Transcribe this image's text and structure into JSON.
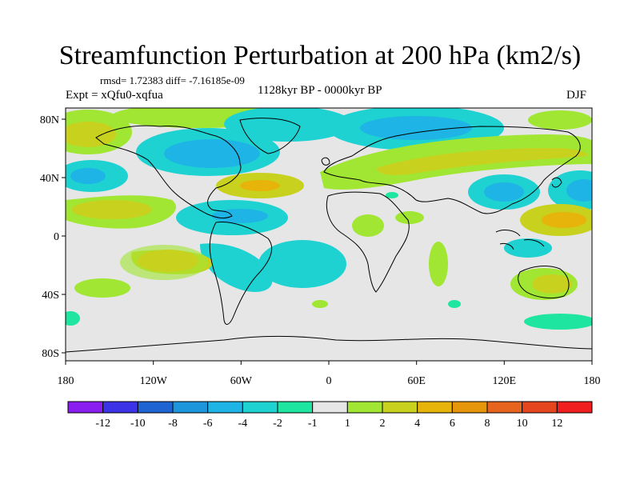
{
  "title": "Streamfunction Perturbation at 200 hPa (km2/s)",
  "stats_line": "rmsd= 1.72383 diff= -7.16185e-09",
  "experiment": "Expt = xQfu0-xqfua",
  "period": "1128kyr BP - 0000kyr BP",
  "season": "DJF",
  "x_ticks": [
    "180",
    "120W",
    "60W",
    "0",
    "60E",
    "120E",
    "180"
  ],
  "y_ticks": [
    "80N",
    "40N",
    "0",
    "40S",
    "80S"
  ],
  "colorbar": {
    "labels": [
      "-12",
      "-10",
      "-8",
      "-6",
      "-4",
      "-2",
      "-1",
      "1",
      "2",
      "4",
      "6",
      "8",
      "10",
      "12"
    ],
    "colors": [
      "#8a1ef0",
      "#3c32e6",
      "#1e64d2",
      "#1e96dc",
      "#1eb4e6",
      "#1ed2d2",
      "#1ee6a0",
      "#e6e6e6",
      "#a0e632",
      "#c8d21e",
      "#e6b40a",
      "#e6960a",
      "#e6641e",
      "#e6461e",
      "#f01e1e"
    ]
  },
  "legend_tiers": {
    "c_green": "#a0e632",
    "c_olive": "#c8d21e",
    "c_gold": "#e6b40a",
    "c_orange": "#e6960a",
    "c_teal": "#1ee6a0",
    "c_cyan": "#1ed2d2",
    "c_lblue": "#1eb4e6",
    "c_blue": "#1e96dc"
  }
}
